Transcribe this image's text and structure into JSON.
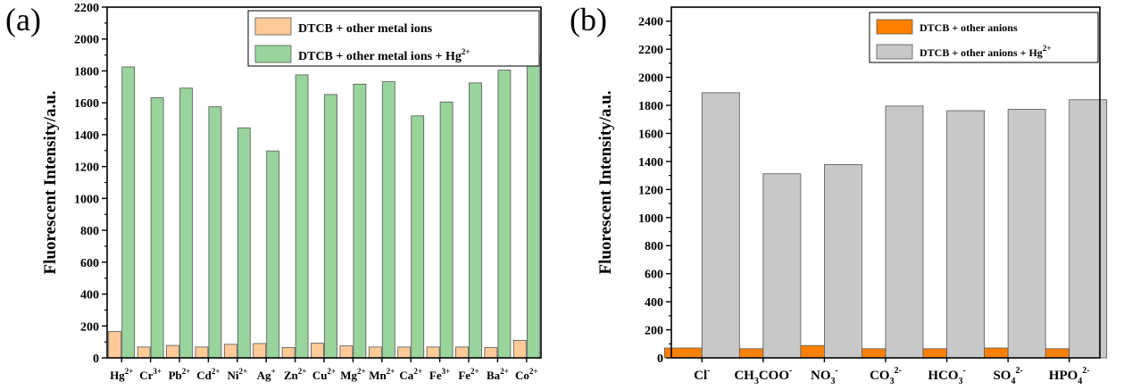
{
  "chart_data": [
    {
      "type": "bar",
      "panel_label": "(a)",
      "ylabel": "Fluorescent Intensity/a.u.",
      "ylim": [
        0,
        2200
      ],
      "yticks": [
        "0",
        "200",
        "400",
        "600",
        "800",
        "1000",
        "1200",
        "1400",
        "1600",
        "1800",
        "2000",
        "2200"
      ],
      "ytick_values": [
        0,
        200,
        400,
        600,
        800,
        1000,
        1200,
        1400,
        1600,
        1800,
        2000,
        2200
      ],
      "categories": [
        {
          "base": "Hg",
          "sup": "2+"
        },
        {
          "base": "Cr",
          "sup": "3+"
        },
        {
          "base": "Pb",
          "sup": "2+"
        },
        {
          "base": "Cd",
          "sup": "2+"
        },
        {
          "base": "Ni",
          "sup": "2+"
        },
        {
          "base": "Ag",
          "sup": "+"
        },
        {
          "base": "Zn",
          "sup": "2+"
        },
        {
          "base": "Cu",
          "sup": "2+"
        },
        {
          "base": "Mg",
          "sup": "2+"
        },
        {
          "base": "Mn",
          "sup": "2+"
        },
        {
          "base": "Ca",
          "sup": "2+"
        },
        {
          "base": "Fe",
          "sup": "3+"
        },
        {
          "base": "Fe",
          "sup": "2+"
        },
        {
          "base": "Ba",
          "sup": "2+"
        },
        {
          "base": "Co",
          "sup": "2+"
        }
      ],
      "legend": {
        "position": "top-right",
        "entries": [
          {
            "text": "DTCB + other metal ions",
            "sup": ""
          },
          {
            "text": "DTCB + other metal ions + Hg",
            "sup": "2+"
          }
        ]
      },
      "series": [
        {
          "color": "#FDCB98",
          "values": [
            165,
            68,
            78,
            68,
            85,
            90,
            65,
            92,
            75,
            68,
            68,
            68,
            68,
            65,
            110
          ]
        },
        {
          "color": "#98D49B",
          "values": [
            1825,
            1632,
            1692,
            1575,
            1443,
            1298,
            1775,
            1652,
            1717,
            1732,
            1518,
            1605,
            1725,
            1805,
            1905
          ]
        }
      ]
    },
    {
      "type": "bar",
      "panel_label": "(b)",
      "ylabel": "Fluorescent Intensity/a.u.",
      "ylim": [
        0,
        2500
      ],
      "yticks": [
        "0",
        "200",
        "400",
        "600",
        "800",
        "1000",
        "1200",
        "1400",
        "1600",
        "1800",
        "2000",
        "2200",
        "2400"
      ],
      "ytick_values": [
        0,
        200,
        400,
        600,
        800,
        1000,
        1200,
        1400,
        1600,
        1800,
        2000,
        2200,
        2400
      ],
      "categories": [
        [
          {
            "t": "Cl",
            "s": ""
          },
          {
            "t": "-",
            "s": "sup"
          }
        ],
        [
          {
            "t": "CH",
            "s": ""
          },
          {
            "t": "3",
            "s": "sub"
          },
          {
            "t": "COO",
            "s": ""
          },
          {
            "t": "-",
            "s": "sup"
          }
        ],
        [
          {
            "t": "NO",
            "s": ""
          },
          {
            "t": "3",
            "s": "sub"
          },
          {
            "t": "-",
            "s": "sup"
          }
        ],
        [
          {
            "t": "CO",
            "s": ""
          },
          {
            "t": "3",
            "s": "sub"
          },
          {
            "t": "2-",
            "s": "sup"
          }
        ],
        [
          {
            "t": "HCO",
            "s": ""
          },
          {
            "t": "3",
            "s": "sub"
          },
          {
            "t": "-",
            "s": "sup"
          }
        ],
        [
          {
            "t": "SO",
            "s": ""
          },
          {
            "t": "4",
            "s": "sub"
          },
          {
            "t": "2-",
            "s": "sup"
          }
        ],
        [
          {
            "t": "HPO",
            "s": ""
          },
          {
            "t": "4",
            "s": "sub"
          },
          {
            "t": "2-",
            "s": "sup"
          }
        ]
      ],
      "legend": {
        "position": "top-right",
        "entries": [
          {
            "text": "DTCB + other anions",
            "sup": ""
          },
          {
            "text": "DTCB + other anions + Hg",
            "sup": "2+"
          }
        ]
      },
      "series": [
        {
          "color": "#FF8000",
          "values": [
            70,
            65,
            88,
            65,
            65,
            70,
            65
          ]
        },
        {
          "color": "#C8C8C8",
          "values": [
            1890,
            1312,
            1378,
            1795,
            1762,
            1772,
            1840
          ]
        }
      ]
    }
  ]
}
